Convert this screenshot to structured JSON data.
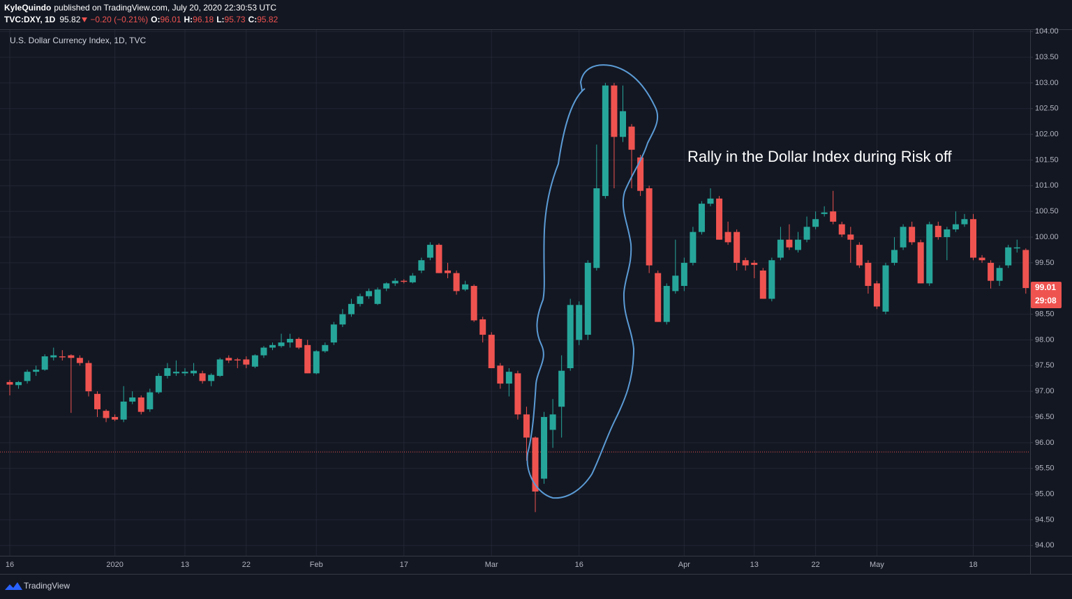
{
  "header": {
    "author": "KyleQuindo",
    "published": "published on TradingView.com, July 20, 2020 22:30:53 UTC"
  },
  "quote": {
    "symbol": "TVC:DXY, 1D",
    "change": "−0.20 (−0.21%)",
    "ohlc": [
      {
        "key": "O:",
        "value": 96.01
      },
      {
        "key": "H:",
        "value": 96.18
      },
      {
        "key": "L:",
        "value": 95.73
      },
      {
        "key": "C:",
        "value": 95.82
      }
    ]
  },
  "footer": {
    "brand": "TradingView"
  },
  "chart_data": {
    "type": "candlestick",
    "title": "U.S. Dollar Currency Index, 1D, TVC",
    "annotation": "Rally in the Dollar Index during Risk off",
    "up_color": "#26a69a",
    "down_color": "#ef5350",
    "grid": true,
    "last_price": 95.82,
    "price_label": {
      "value": 99.01,
      "countdown": "29:08"
    },
    "ylim": [
      93.8,
      104.03
    ],
    "yticks": [
      {
        "value": 94,
        "label": "94.00"
      },
      {
        "value": 94.5,
        "label": "94.50"
      },
      {
        "value": 95,
        "label": "95.00"
      },
      {
        "value": 95.5,
        "label": "95.50"
      },
      {
        "value": 96,
        "label": "96.00"
      },
      {
        "value": 96.5,
        "label": "96.50"
      },
      {
        "value": 97,
        "label": "97.00"
      },
      {
        "value": 97.5,
        "label": "97.50"
      },
      {
        "value": 98,
        "label": "98.00"
      },
      {
        "value": 98.5,
        "label": "98.50"
      },
      {
        "value": 99,
        "label": "99.00"
      },
      {
        "value": 99.5,
        "label": "99.50"
      },
      {
        "value": 100,
        "label": "100.00"
      },
      {
        "value": 100.5,
        "label": "100.50"
      },
      {
        "value": 101,
        "label": "101.00"
      },
      {
        "value": 101.5,
        "label": "101.50"
      },
      {
        "value": 102,
        "label": "102.00"
      },
      {
        "value": 102.5,
        "label": "102.50"
      },
      {
        "value": 103,
        "label": "103.00"
      },
      {
        "value": 103.5,
        "label": "103.50"
      },
      {
        "value": 104,
        "label": "104.00"
      }
    ],
    "categories": [
      "16",
      null,
      null,
      null,
      null,
      null,
      null,
      null,
      null,
      null,
      null,
      null,
      "2020",
      null,
      null,
      null,
      null,
      null,
      null,
      null,
      "13",
      null,
      null,
      null,
      null,
      null,
      null,
      "22",
      null,
      null,
      null,
      null,
      null,
      null,
      null,
      "Feb",
      null,
      null,
      null,
      null,
      null,
      null,
      null,
      null,
      null,
      "17",
      null,
      null,
      null,
      null,
      null,
      null,
      null,
      null,
      null,
      "Mar",
      null,
      null,
      null,
      null,
      null,
      null,
      null,
      null,
      null,
      "16",
      null,
      null,
      null,
      null,
      null,
      null,
      null,
      null,
      null,
      null,
      null,
      "Apr",
      null,
      null,
      null,
      null,
      null,
      null,
      null,
      "13",
      null,
      null,
      null,
      null,
      null,
      null,
      "22",
      null,
      null,
      null,
      null,
      null,
      null,
      "May",
      null,
      null,
      null,
      null,
      null,
      null,
      null,
      null,
      null,
      null,
      "18",
      null,
      null,
      null,
      null,
      null,
      null
    ],
    "open": [
      97.18,
      97.12,
      97.2,
      97.38,
      97.42,
      97.66,
      97.68,
      97.7,
      97.65,
      97.55,
      96.95,
      96.62,
      96.5,
      96.45,
      96.8,
      96.88,
      96.65,
      96.98,
      97.3,
      97.35,
      97.35,
      97.35,
      97.35,
      97.2,
      97.3,
      97.65,
      97.62,
      97.62,
      97.48,
      97.7,
      97.85,
      97.88,
      97.95,
      98.02,
      97.9,
      97.35,
      97.78,
      97.95,
      98.3,
      98.5,
      98.7,
      98.85,
      98.7,
      99.0,
      99.1,
      99.15,
      99.12,
      99.35,
      99.6,
      99.85,
      99.35,
      99.3,
      98.98,
      99.05,
      98.4,
      98.1,
      97.5,
      97.15,
      97.35,
      96.55,
      96.1,
      95.3,
      96.25,
      96.7,
      97.45,
      98.0,
      98.1,
      99.4,
      100.8,
      102.95,
      101.95,
      102.15,
      101.55,
      100.95,
      99.3,
      98.35,
      98.95,
      99.05,
      99.5,
      100.1,
      100.65,
      100.75,
      100.1,
      100.1,
      99.55,
      99.5,
      99.35,
      98.8,
      99.6,
      99.95,
      99.75,
      99.95,
      100.2,
      100.45,
      100.5,
      100.25,
      100.05,
      99.85,
      99.5,
      99.1,
      98.55,
      99.5,
      99.8,
      100.2,
      99.9,
      99.1,
      100.22,
      100.0,
      100.15,
      100.25,
      100.35,
      99.6,
      99.5,
      99.15,
      99.45,
      99.78,
      99.75
    ],
    "high": [
      97.22,
      97.2,
      97.42,
      97.5,
      97.72,
      97.85,
      97.8,
      97.72,
      97.7,
      97.6,
      97.0,
      96.65,
      96.55,
      97.1,
      97.0,
      96.92,
      97.05,
      97.35,
      97.55,
      97.6,
      97.45,
      97.55,
      97.4,
      97.35,
      97.65,
      97.7,
      97.65,
      97.68,
      97.72,
      97.88,
      97.95,
      98.12,
      98.12,
      98.05,
      98.0,
      97.8,
      97.95,
      98.35,
      98.6,
      98.8,
      98.9,
      99.0,
      99.02,
      99.12,
      99.2,
      99.18,
      99.3,
      99.6,
      99.9,
      99.88,
      99.5,
      99.35,
      99.15,
      99.08,
      98.45,
      98.15,
      97.55,
      97.45,
      97.4,
      96.7,
      96.12,
      96.6,
      96.85,
      97.7,
      98.8,
      98.75,
      99.55,
      101.8,
      103.0,
      103.0,
      102.95,
      102.2,
      101.6,
      101.0,
      99.35,
      99.1,
      99.95,
      99.6,
      100.2,
      100.7,
      100.95,
      100.8,
      100.3,
      100.15,
      99.6,
      99.55,
      99.4,
      99.6,
      100.2,
      100.25,
      100.1,
      100.4,
      100.5,
      100.6,
      100.9,
      100.3,
      100.2,
      99.9,
      99.55,
      99.15,
      99.5,
      100.0,
      100.25,
      100.3,
      99.95,
      100.3,
      100.3,
      100.2,
      100.5,
      100.45,
      100.45,
      99.65,
      99.55,
      99.45,
      99.85,
      99.95,
      99.78
    ],
    "low": [
      96.92,
      97.05,
      97.15,
      97.3,
      97.4,
      97.6,
      97.6,
      96.58,
      97.5,
      96.9,
      96.5,
      96.4,
      96.42,
      96.4,
      96.75,
      96.55,
      96.6,
      96.95,
      97.25,
      97.3,
      97.3,
      97.3,
      97.15,
      97.1,
      97.28,
      97.55,
      97.45,
      97.45,
      97.45,
      97.65,
      97.8,
      97.85,
      97.85,
      97.82,
      97.35,
      97.33,
      97.75,
      97.9,
      98.25,
      98.45,
      98.65,
      98.8,
      98.68,
      98.95,
      99.05,
      99.1,
      99.1,
      99.3,
      99.55,
      99.3,
      99.2,
      98.88,
      98.95,
      98.35,
      97.95,
      97.45,
      97.05,
      96.9,
      96.45,
      95.65,
      94.65,
      95.2,
      95.9,
      96.1,
      97.4,
      97.9,
      98.0,
      99.35,
      100.75,
      100.95,
      101.85,
      100.95,
      100.8,
      99.3,
      98.35,
      98.3,
      98.9,
      98.95,
      99.45,
      100.05,
      100.6,
      99.95,
      99.85,
      99.35,
      99.35,
      99.2,
      98.8,
      98.75,
      99.55,
      99.75,
      99.7,
      99.9,
      100.15,
      100.4,
      100.25,
      100.0,
      99.5,
      99.4,
      98.9,
      98.6,
      98.5,
      99.45,
      99.75,
      99.85,
      99.1,
      99.05,
      99.95,
      99.55,
      100.1,
      100.2,
      99.55,
      99.5,
      99.0,
      99.05,
      99.4,
      99.7,
      98.9
    ],
    "close": [
      97.13,
      97.18,
      97.38,
      97.42,
      97.68,
      97.7,
      97.66,
      97.65,
      97.55,
      97.0,
      96.65,
      96.48,
      96.45,
      96.8,
      96.88,
      96.6,
      96.98,
      97.3,
      97.45,
      97.38,
      97.38,
      97.4,
      97.2,
      97.32,
      97.62,
      97.6,
      97.6,
      97.52,
      97.7,
      97.85,
      97.9,
      97.95,
      98.02,
      97.85,
      97.35,
      97.78,
      97.9,
      98.3,
      98.5,
      98.7,
      98.85,
      98.95,
      98.98,
      99.1,
      99.15,
      99.13,
      99.25,
      99.55,
      99.85,
      99.3,
      99.3,
      98.95,
      99.08,
      98.38,
      98.1,
      97.45,
      97.15,
      97.38,
      96.55,
      96.1,
      95.05,
      96.5,
      96.55,
      97.4,
      98.68,
      98.68,
      99.5,
      100.95,
      102.95,
      101.95,
      102.45,
      101.7,
      100.9,
      99.45,
      98.35,
      99.05,
      99.25,
      99.5,
      100.1,
      100.65,
      100.75,
      99.95,
      99.9,
      99.5,
      99.45,
      99.46,
      98.8,
      99.55,
      99.95,
      99.8,
      99.95,
      100.2,
      100.35,
      100.48,
      100.3,
      100.05,
      99.95,
      99.45,
      99.05,
      98.65,
      99.45,
      99.75,
      100.2,
      99.9,
      99.1,
      100.25,
      100.0,
      100.15,
      100.25,
      100.35,
      99.6,
      99.55,
      99.15,
      99.4,
      99.8,
      99.8,
      99.01
    ]
  }
}
